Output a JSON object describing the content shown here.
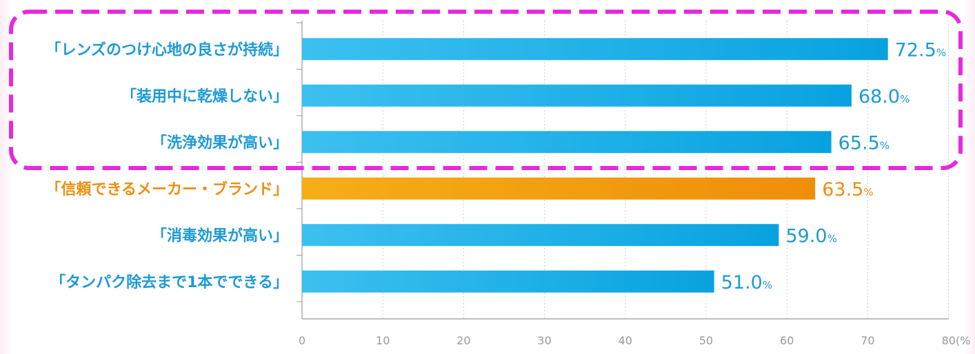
{
  "chart_data": {
    "type": "bar",
    "orientation": "horizontal",
    "categories": [
      "「レンズのつけ心地の良さが持続」",
      "「装用中に乾燥しない」",
      "「洗浄効果が高い」",
      "「信頼できるメーカー・ブランド」",
      "「消毒効果が高い」",
      "「タンパク除去まで1本でできる」"
    ],
    "values": [
      72.5,
      68.0,
      65.5,
      63.5,
      59.0,
      51.0
    ],
    "value_labels": [
      "72.5",
      "68.0",
      "65.5",
      "63.5",
      "59.0",
      "51.0"
    ],
    "value_unit": "%",
    "highlight_index": 3,
    "xlim": [
      0,
      80
    ],
    "x_ticks": [
      0,
      10,
      20,
      30,
      40,
      50,
      60,
      70,
      80
    ],
    "x_tick_labels": [
      "0",
      "10",
      "20",
      "30",
      "40",
      "50",
      "60",
      "70",
      "80(%"
    ],
    "grid": true,
    "annotation": "dashed magenta box around top three items"
  },
  "colors": {
    "bar_default": "#1aa9e6",
    "bar_highlight": "#f29a12",
    "label_default": "#1c9ad6",
    "label_highlight": "#ee8e10",
    "annotation_box": "#e629df",
    "grid": "#d0d0d0",
    "axis": "#999999"
  }
}
